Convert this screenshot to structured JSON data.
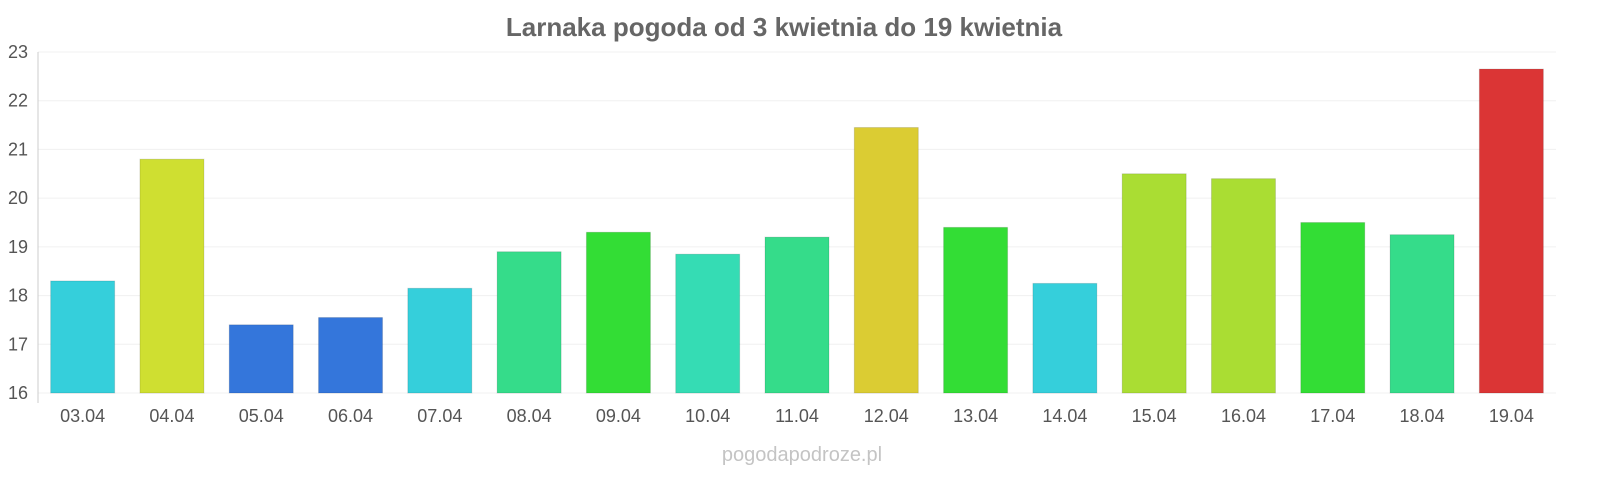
{
  "chart_data": {
    "type": "bar",
    "title": "Larnaka pogoda od 3 kwietnia do 19 kwietnia",
    "xlabel": "",
    "ylabel": "",
    "ylim": [
      16,
      23
    ],
    "yticks": [
      "16",
      "17",
      "18",
      "19",
      "20",
      "21",
      "22",
      "23"
    ],
    "grid": true,
    "categories": [
      "03.04",
      "04.04",
      "05.04",
      "06.04",
      "07.04",
      "08.04",
      "09.04",
      "10.04",
      "11.04",
      "12.04",
      "13.04",
      "14.04",
      "15.04",
      "16.04",
      "17.04",
      "18.04",
      "19.04"
    ],
    "values": [
      18.3,
      20.8,
      17.4,
      17.55,
      18.15,
      18.9,
      19.3,
      18.85,
      19.2,
      21.45,
      19.4,
      18.25,
      20.5,
      20.4,
      19.5,
      19.25,
      22.65
    ],
    "colors": [
      "#35cfdb",
      "#cfdf31",
      "#3476db",
      "#3476db",
      "#35cfdb",
      "#35dc8a",
      "#33dd35",
      "#35dcb4",
      "#35dc8a",
      "#dbcc33",
      "#33dd35",
      "#35cfdb",
      "#aadd33",
      "#aadd33",
      "#33dd35",
      "#35dc8a",
      "#db3535"
    ]
  },
  "footer": "pogodapodroze.pl"
}
